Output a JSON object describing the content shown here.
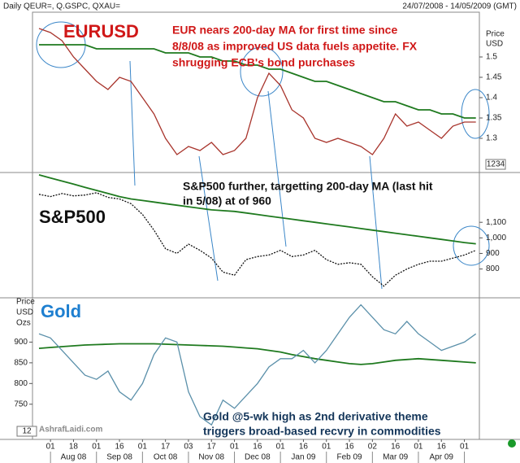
{
  "header": {
    "title": "Daily QEUR=, Q.GSPC, QXAU=",
    "date_range": "24/07/2008 - 14/05/2009 (GMT)"
  },
  "watermark": "AshrafLaidi.com",
  "x_axis": {
    "categories": [
      null,
      "01",
      null,
      "18",
      null,
      "01",
      null,
      "16",
      null,
      "01",
      null,
      "17",
      null,
      "03",
      null,
      "17",
      null,
      "01",
      null,
      "16",
      null,
      "01",
      null,
      "16",
      null,
      "01",
      null,
      "16",
      null,
      "02",
      null,
      "16",
      null,
      "01",
      null,
      "16",
      null,
      "01",
      null
    ],
    "months": [
      "Aug 08",
      "Sep 08",
      "Oct 08",
      "Nov 08",
      "Dec 08",
      "Jan 09",
      "Feb 09",
      "Mar 09",
      "Apr 09"
    ]
  },
  "chart_data": [
    {
      "type": "line",
      "label": "EURUSD",
      "units": [
        "Price",
        "USD"
      ],
      "box_label": "1234",
      "annotation": [
        "EUR nears 200-day MA for first time since",
        "8/8/08 as improved US data fuels appetite. FX",
        "shrugging ECB's bond purchases"
      ],
      "ylim": [
        1.22,
        1.61
      ],
      "yticks": [
        1.3,
        1.35,
        1.4,
        1.45,
        1.5
      ],
      "series": [
        {
          "color": "#a8342c",
          "values": [
            1.57,
            1.56,
            1.54,
            1.5,
            1.47,
            1.44,
            1.42,
            1.45,
            1.44,
            1.4,
            1.36,
            1.3,
            1.26,
            1.28,
            1.27,
            1.29,
            1.26,
            1.27,
            1.3,
            1.4,
            1.46,
            1.43,
            1.37,
            1.35,
            1.3,
            1.29,
            1.3,
            1.29,
            1.28,
            1.26,
            1.3,
            1.36,
            1.33,
            1.34,
            1.32,
            1.3,
            1.33,
            1.34,
            1.34
          ]
        },
        {
          "color": "#1f7a1f",
          "values": [
            1.53,
            1.53,
            1.53,
            1.53,
            1.53,
            1.52,
            1.52,
            1.52,
            1.52,
            1.52,
            1.52,
            1.51,
            1.51,
            1.51,
            1.5,
            1.5,
            1.49,
            1.49,
            1.48,
            1.48,
            1.47,
            1.47,
            1.46,
            1.45,
            1.44,
            1.44,
            1.43,
            1.42,
            1.41,
            1.4,
            1.39,
            1.39,
            1.38,
            1.37,
            1.37,
            1.36,
            1.36,
            1.35,
            1.35
          ]
        }
      ]
    },
    {
      "type": "line",
      "label": "S&P500",
      "annotation": [
        "S&P500 further, targetting 200-day MA (last hit",
        "in 5/08) at of 960"
      ],
      "ylim": [
        620,
        1420
      ],
      "yticks": [
        800,
        900,
        {
          "value": 1000,
          "label": "1,000"
        },
        {
          "value": 1100,
          "label": "1,100"
        }
      ],
      "series": [
        {
          "color": "#111111",
          "values": [
            1280,
            1265,
            1285,
            1270,
            1275,
            1290,
            1260,
            1250,
            1220,
            1150,
            1050,
            930,
            900,
            960,
            920,
            870,
            780,
            760,
            860,
            880,
            890,
            920,
            880,
            890,
            920,
            860,
            830,
            840,
            830,
            750,
            690,
            760,
            800,
            830,
            850,
            850,
            870,
            890,
            920
          ]
        },
        {
          "color": "#1f7a1f",
          "values": [
            1405,
            1385,
            1365,
            1345,
            1325,
            1305,
            1285,
            1265,
            1250,
            1240,
            1230,
            1220,
            1210,
            1200,
            1190,
            1180,
            1175,
            1170,
            1160,
            1150,
            1140,
            1130,
            1120,
            1110,
            1100,
            1090,
            1080,
            1070,
            1060,
            1050,
            1040,
            1030,
            1020,
            1010,
            1000,
            990,
            980,
            970,
            962
          ]
        }
      ]
    },
    {
      "type": "line",
      "label": "Gold",
      "units": [
        "Price",
        "USD",
        "Ozs"
      ],
      "box_label": "12",
      "annotation": [
        "Gold @5-wk high as 2nd derivative theme",
        "triggers broad-based recvry in commodities"
      ],
      "ylim": [
        665,
        1005
      ],
      "yticks": [
        750,
        800,
        850,
        900
      ],
      "series": [
        {
          "color": "#5b90aa",
          "values": [
            920,
            910,
            880,
            850,
            820,
            810,
            830,
            780,
            760,
            800,
            870,
            910,
            900,
            780,
            720,
            700,
            760,
            740,
            770,
            800,
            840,
            860,
            860,
            880,
            850,
            880,
            920,
            960,
            990,
            960,
            930,
            920,
            950,
            920,
            900,
            880,
            890,
            900,
            920
          ]
        },
        {
          "color": "#1f7a1f",
          "values": [
            885,
            887,
            889,
            891,
            893,
            894,
            895,
            896,
            896,
            896,
            896,
            895,
            894,
            893,
            892,
            891,
            890,
            888,
            886,
            884,
            880,
            876,
            870,
            865,
            860,
            856,
            852,
            848,
            846,
            848,
            852,
            856,
            858,
            860,
            858,
            856,
            854,
            852,
            850
          ]
        }
      ]
    }
  ]
}
